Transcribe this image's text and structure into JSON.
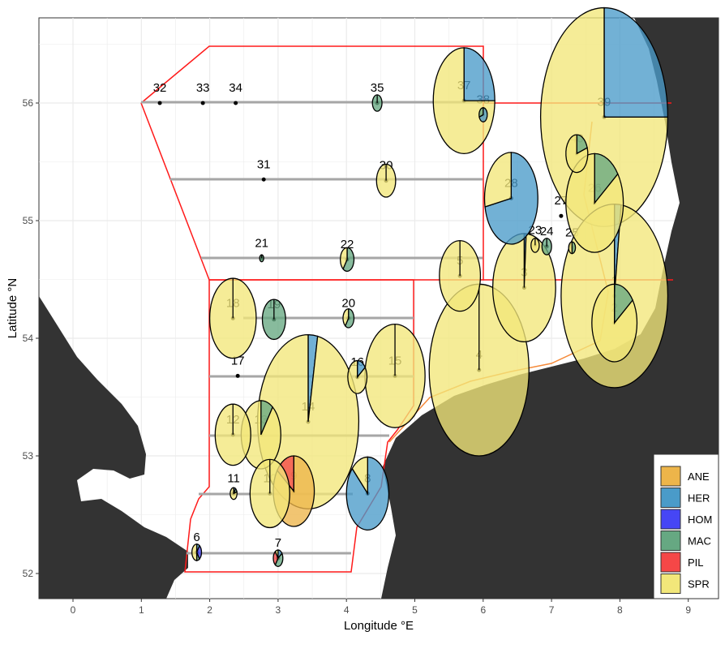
{
  "chart_data": {
    "type": "scatter-pie-map",
    "xlabel": "Longitude °E",
    "ylabel": "Latitude °N",
    "xlim": [
      -0.5,
      9.45
    ],
    "ylim": [
      51.77,
      56.72
    ],
    "xticks": [
      0,
      1,
      2,
      3,
      4,
      5,
      6,
      7,
      8,
      9
    ],
    "yticks": [
      52,
      53,
      54,
      55,
      56
    ],
    "grid": true,
    "legend_position": "bottom-right",
    "species": [
      "ANE",
      "HER",
      "HOM",
      "MAC",
      "PIL",
      "SPR"
    ],
    "colors": {
      "ANE": "#EDB54A",
      "HER": "#4A9BC9",
      "HOM": "#4646F5",
      "MAC": "#66A882",
      "PIL": "#F54747",
      "SPR": "#F2E77A"
    },
    "land_color": "#333333",
    "stations": [
      {
        "id": "1",
        "lon": 7.92,
        "lat": 54.36,
        "r": 0.78,
        "comp": {
          "HER": 0.02,
          "SPR": 0.98
        }
      },
      {
        "id": "2",
        "lon": 7.92,
        "lat": 54.13,
        "r": 0.33,
        "comp": {
          "MAC": 0.15,
          "SPR": 0.85
        }
      },
      {
        "id": "3",
        "lon": 6.6,
        "lat": 54.43,
        "r": 0.46,
        "comp": {
          "HER": 0.01,
          "SPR": 0.99
        }
      },
      {
        "id": "4",
        "lon": 5.94,
        "lat": 53.73,
        "r": 0.73,
        "comp": {
          "SPR": 1
        }
      },
      {
        "id": "5",
        "lon": 5.66,
        "lat": 54.53,
        "r": 0.3,
        "comp": {
          "SPR": 1
        }
      },
      {
        "id": "6",
        "lon": 1.81,
        "lat": 52.18,
        "r": 0.07,
        "comp": {
          "HER": 0.1,
          "HOM": 0.3,
          "MAC": 0.1,
          "SPR": 0.5
        }
      },
      {
        "id": "7",
        "lon": 3.0,
        "lat": 52.13,
        "r": 0.07,
        "comp": {
          "HER": 0.15,
          "MAC": 0.45,
          "PIL": 0.3,
          "SPR": 0.1
        }
      },
      {
        "id": "8",
        "lon": 4.31,
        "lat": 52.68,
        "r": 0.31,
        "comp": {
          "HER": 0.87,
          "SPR": 0.13
        }
      },
      {
        "id": "9",
        "lon": 3.23,
        "lat": 52.7,
        "r": 0.3,
        "comp": {
          "ANE": 0.85,
          "PIL": 0.15
        }
      },
      {
        "id": "10",
        "lon": 2.88,
        "lat": 52.68,
        "r": 0.29,
        "comp": {
          "SPR": 1
        }
      },
      {
        "id": "11",
        "lon": 2.35,
        "lat": 52.68,
        "r": 0.05,
        "comp": {
          "HER": 0.1,
          "MAC": 0.1,
          "SPR": 0.8
        }
      },
      {
        "id": "12",
        "lon": 2.34,
        "lat": 53.18,
        "r": 0.26,
        "comp": {
          "SPR": 1
        }
      },
      {
        "id": "13",
        "lon": 2.75,
        "lat": 53.18,
        "r": 0.29,
        "comp": {
          "MAC": 0.1,
          "SPR": 0.9
        }
      },
      {
        "id": "14",
        "lon": 3.44,
        "lat": 53.29,
        "r": 0.74,
        "comp": {
          "HER": 0.03,
          "SPR": 0.97
        }
      },
      {
        "id": "15",
        "lon": 4.71,
        "lat": 53.68,
        "r": 0.44,
        "comp": {
          "SPR": 1
        }
      },
      {
        "id": "16",
        "lon": 4.16,
        "lat": 53.67,
        "r": 0.14,
        "comp": {
          "HER": 0.15,
          "SPR": 0.85
        }
      },
      {
        "id": "17",
        "lon": 2.41,
        "lat": 53.68,
        "r": 0,
        "comp": {}
      },
      {
        "id": "18",
        "lon": 2.34,
        "lat": 54.17,
        "r": 0.34,
        "comp": {
          "SPR": 1
        }
      },
      {
        "id": "19",
        "lon": 2.94,
        "lat": 54.16,
        "r": 0.17,
        "comp": {
          "MAC": 1
        }
      },
      {
        "id": "20",
        "lon": 4.03,
        "lat": 54.17,
        "r": 0.08,
        "comp": {
          "MAC": 0.6,
          "SPR": 0.4
        }
      },
      {
        "id": "21",
        "lon": 2.76,
        "lat": 54.68,
        "r": 0.03,
        "comp": {
          "MAC": 1
        }
      },
      {
        "id": "22",
        "lon": 4.01,
        "lat": 54.67,
        "r": 0.1,
        "comp": {
          "MAC": 0.6,
          "SPR": 0.4
        }
      },
      {
        "id": "23",
        "lon": 6.76,
        "lat": 54.79,
        "r": 0.06,
        "comp": {
          "SPR": 1
        }
      },
      {
        "id": "24",
        "lon": 6.93,
        "lat": 54.78,
        "r": 0.07,
        "comp": {
          "MAC": 1
        }
      },
      {
        "id": "25",
        "lon": 7.3,
        "lat": 54.77,
        "r": 0.05,
        "comp": {
          "MAC": 0.5,
          "SPR": 0.5
        }
      },
      {
        "id": "26",
        "lon": 7.63,
        "lat": 55.15,
        "r": 0.42,
        "comp": {
          "MAC": 0.15,
          "SPR": 0.85
        }
      },
      {
        "id": "27",
        "lon": 7.14,
        "lat": 55.04,
        "r": 0,
        "comp": {}
      },
      {
        "id": "28",
        "lon": 6.41,
        "lat": 55.19,
        "r": 0.39,
        "comp": {
          "HER": 0.72,
          "SPR": 0.28
        }
      },
      {
        "id": "30",
        "lon": 4.58,
        "lat": 55.34,
        "r": 0.14,
        "comp": {
          "SPR": 1
        }
      },
      {
        "id": "31",
        "lon": 2.79,
        "lat": 55.35,
        "r": 0,
        "comp": {}
      },
      {
        "id": "32",
        "lon": 1.27,
        "lat": 56.0,
        "r": 0,
        "comp": {}
      },
      {
        "id": "33",
        "lon": 1.9,
        "lat": 56.0,
        "r": 0,
        "comp": {}
      },
      {
        "id": "34",
        "lon": 2.38,
        "lat": 56.0,
        "r": 0,
        "comp": {}
      },
      {
        "id": "35",
        "lon": 4.45,
        "lat": 56.0,
        "r": 0.07,
        "comp": {
          "MAC": 1
        }
      },
      {
        "id": "37",
        "lon": 5.72,
        "lat": 56.02,
        "r": 0.45,
        "comp": {
          "HER": 0.25,
          "SPR": 0.75
        }
      },
      {
        "id": "38",
        "lon": 6.0,
        "lat": 55.9,
        "r": 0.06,
        "comp": {
          "HER": 0.7,
          "MAC": 0.3
        }
      },
      {
        "id": "39",
        "lon": 7.77,
        "lat": 55.88,
        "r": 0.93,
        "comp": {
          "HER": 0.25,
          "SPR": 0.75
        }
      },
      {
        "id": "40",
        "lon": 7.37,
        "lat": 55.57,
        "r": 0.16,
        "comp": {
          "MAC": 0.2,
          "SPR": 0.8
        }
      }
    ]
  }
}
